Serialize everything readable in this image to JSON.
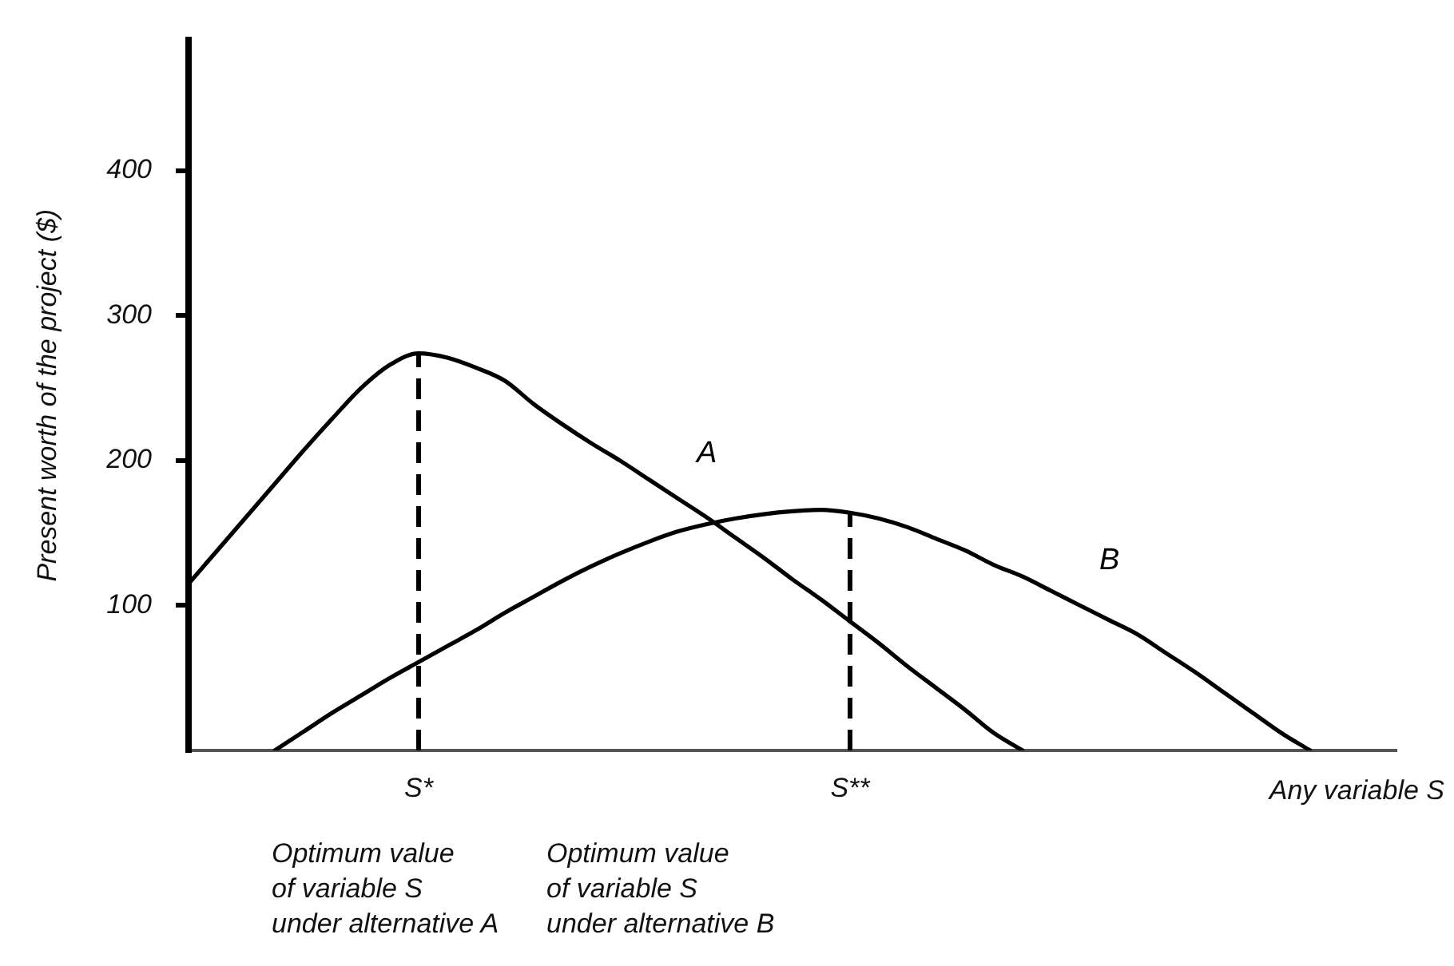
{
  "chart_data": {
    "type": "line",
    "ylabel": "Present worth of the project ($)",
    "xlabel": "Any variable S",
    "categories": [
      null,
      null,
      null,
      null,
      null,
      null,
      null,
      null,
      "S*",
      null,
      null,
      null,
      null,
      null,
      null,
      null,
      null,
      null,
      null,
      null,
      null,
      null,
      null,
      "S**",
      null,
      null,
      null,
      null,
      null,
      null,
      null,
      null,
      null,
      null,
      null,
      null,
      null,
      null,
      null,
      null,
      null,
      null,
      null
    ],
    "series": [
      {
        "name": "A",
        "color": "#000000",
        "values": [
          115,
          138,
          161,
          184,
          207,
          229,
          250,
          266,
          274,
          271,
          264,
          255,
          239,
          225,
          212,
          200,
          187,
          174,
          161,
          147,
          133,
          118,
          104,
          89,
          74,
          58,
          43,
          28,
          12,
          0,
          null,
          null,
          null,
          null,
          null,
          null,
          null,
          null,
          null,
          null,
          null,
          null,
          null
        ]
      },
      {
        "name": "B",
        "color": "#000000",
        "values": [
          null,
          null,
          null,
          0,
          13,
          26,
          38,
          50,
          61,
          72,
          83,
          95,
          106,
          117,
          127,
          136,
          144,
          151,
          156,
          160,
          163,
          165,
          166,
          164,
          160,
          154,
          146,
          138,
          128,
          120,
          110,
          100,
          90,
          80,
          67,
          54,
          40,
          26,
          12,
          0,
          null,
          null,
          null
        ]
      }
    ],
    "ylim": [
      0,
      490
    ],
    "yticks": [
      100,
      200,
      300,
      400
    ],
    "marker": "none",
    "ref_lines": [
      {
        "axis": "x",
        "value": "S*",
        "color": "#000000",
        "line_style": "dashed"
      },
      {
        "axis": "x",
        "value": "S**",
        "color": "#000000",
        "line_style": "dashed"
      }
    ],
    "annotations": [
      "Optimum value\nof variable S\nunder alternative A",
      "Optimum value\nof variable S\nunder alternative B"
    ]
  }
}
